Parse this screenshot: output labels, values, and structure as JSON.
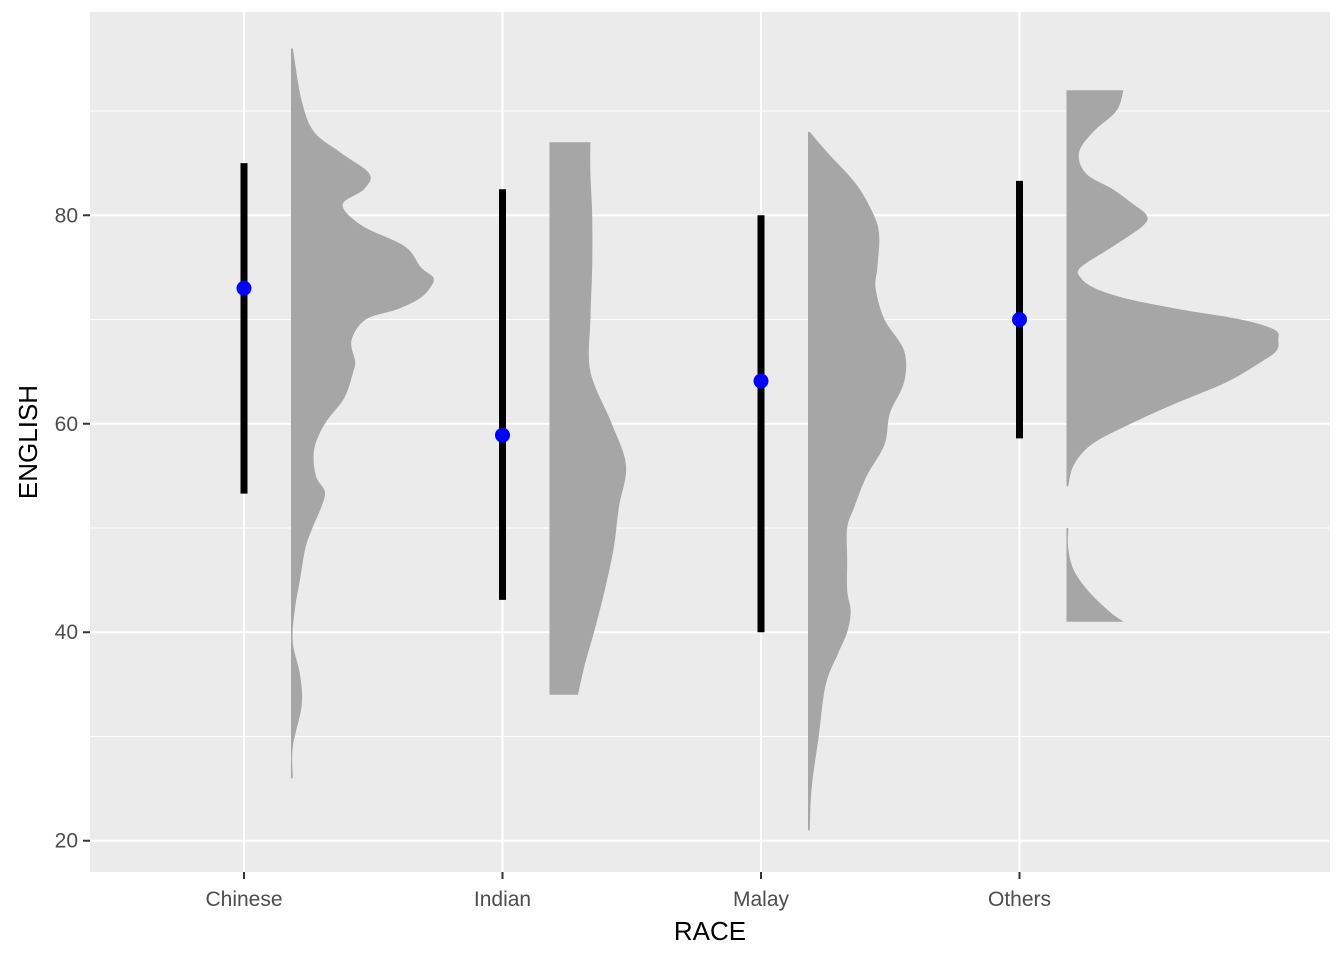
{
  "chart_data": {
    "type": "raincloud",
    "xlabel": "RACE",
    "ylabel": "ENGLISH",
    "categories": [
      "Chinese",
      "Indian",
      "Malay",
      "Others"
    ],
    "y_ticks": [
      20,
      40,
      60,
      80
    ],
    "ylim": [
      17,
      99.5
    ],
    "grid": true,
    "legend": "none",
    "colors": {
      "panel": "#ebebeb",
      "grid": "#ffffff",
      "density": "#a6a6a6",
      "interval": "#000000",
      "point": "#0000ff"
    },
    "series": [
      {
        "category": "Chinese",
        "median": 73,
        "interval": [
          53.3,
          85
        ],
        "density": [
          [
            26,
            0.01
          ],
          [
            29,
            0.01
          ],
          [
            33,
            0.06
          ],
          [
            36,
            0.05
          ],
          [
            39,
            0.01
          ],
          [
            42,
            0.02
          ],
          [
            45,
            0.05
          ],
          [
            48,
            0.08
          ],
          [
            50,
            0.12
          ],
          [
            52,
            0.17
          ],
          [
            53.5,
            0.19
          ],
          [
            55,
            0.14
          ],
          [
            57.5,
            0.13
          ],
          [
            60,
            0.19
          ],
          [
            62.5,
            0.3
          ],
          [
            65,
            0.35
          ],
          [
            66,
            0.36
          ],
          [
            68,
            0.34
          ],
          [
            70,
            0.42
          ],
          [
            71,
            0.6
          ],
          [
            72,
            0.72
          ],
          [
            73,
            0.78
          ],
          [
            74,
            0.8
          ],
          [
            75,
            0.73
          ],
          [
            77,
            0.64
          ],
          [
            79,
            0.4
          ],
          [
            81,
            0.29
          ],
          [
            82.5,
            0.41
          ],
          [
            84,
            0.44
          ],
          [
            86,
            0.28
          ],
          [
            88,
            0.13
          ],
          [
            91,
            0.06
          ],
          [
            96,
            0.01
          ]
        ]
      },
      {
        "category": "Indian",
        "median": 58.9,
        "interval": [
          43.1,
          82.5
        ],
        "density": [
          [
            34,
            0.16
          ],
          [
            37,
            0.2
          ],
          [
            40,
            0.25
          ],
          [
            44,
            0.31
          ],
          [
            48,
            0.36
          ],
          [
            52,
            0.39
          ],
          [
            56,
            0.43
          ],
          [
            60,
            0.35
          ],
          [
            65,
            0.23
          ],
          [
            70,
            0.23
          ],
          [
            75,
            0.24
          ],
          [
            80,
            0.24
          ],
          [
            84,
            0.23
          ],
          [
            87,
            0.23
          ]
        ]
      },
      {
        "category": "Malay",
        "median": 64.1,
        "interval": [
          40,
          80
        ],
        "density": [
          [
            21,
            0.01
          ],
          [
            25,
            0.02
          ],
          [
            30,
            0.06
          ],
          [
            35,
            0.1
          ],
          [
            38,
            0.17
          ],
          [
            40,
            0.22
          ],
          [
            42,
            0.24
          ],
          [
            44,
            0.22
          ],
          [
            47,
            0.22
          ],
          [
            50,
            0.22
          ],
          [
            52,
            0.26
          ],
          [
            55,
            0.33
          ],
          [
            58,
            0.43
          ],
          [
            61,
            0.46
          ],
          [
            64,
            0.54
          ],
          [
            67,
            0.54
          ],
          [
            70,
            0.43
          ],
          [
            73,
            0.38
          ],
          [
            75,
            0.39
          ],
          [
            78,
            0.4
          ],
          [
            80,
            0.37
          ],
          [
            83,
            0.27
          ],
          [
            86,
            0.11
          ],
          [
            88,
            0.01
          ]
        ]
      },
      {
        "category": "Others",
        "density_segments": [
          [
            [
              41,
              0.32
            ],
            [
              42,
              0.24
            ],
            [
              44,
              0.12
            ],
            [
              46,
              0.04
            ],
            [
              48,
              0.01
            ],
            [
              50,
              0.01
            ]
          ],
          [
            [
              54,
              0.01
            ],
            [
              56,
              0.04
            ],
            [
              58,
              0.14
            ],
            [
              60,
              0.36
            ],
            [
              62,
              0.62
            ],
            [
              64,
              0.9
            ],
            [
              66,
              1.1
            ],
            [
              67,
              1.18
            ],
            [
              68,
              1.19
            ],
            [
              69,
              1.17
            ],
            [
              70,
              0.98
            ],
            [
              71,
              0.63
            ],
            [
              72,
              0.34
            ],
            [
              73,
              0.16
            ],
            [
              74,
              0.08
            ],
            [
              75,
              0.08
            ],
            [
              77,
              0.26
            ],
            [
              79,
              0.43
            ],
            [
              80,
              0.45
            ],
            [
              81,
              0.38
            ],
            [
              82.5,
              0.26
            ],
            [
              84,
              0.11
            ],
            [
              86,
              0.07
            ],
            [
              88,
              0.15
            ],
            [
              90,
              0.28
            ],
            [
              92,
              0.32
            ]
          ]
        ],
        "median": 70,
        "interval": [
          58.6,
          83.3
        ]
      }
    ]
  }
}
